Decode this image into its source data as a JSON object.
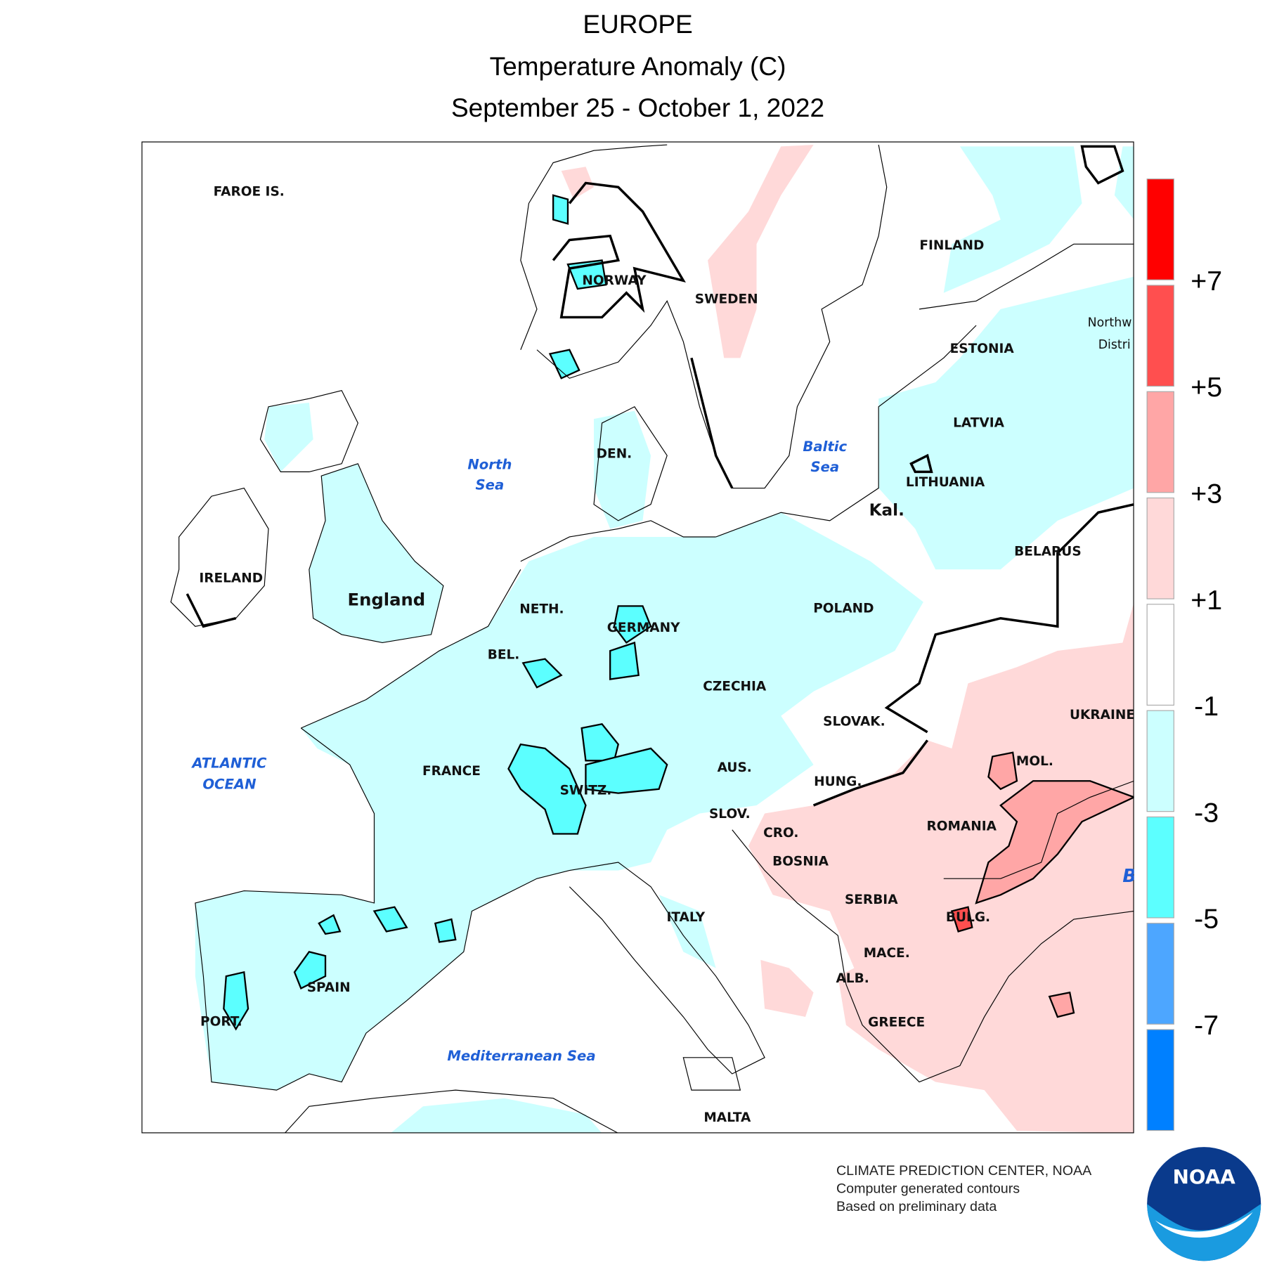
{
  "title": {
    "region": "EUROPE",
    "variable": "Temperature Anomaly (C)",
    "period": "September 25 - October 1, 2022"
  },
  "map_labels": {
    "countries": [
      "FAROE IS.",
      "NORWAY",
      "SWEDEN",
      "FINLAND",
      "ESTONIA",
      "LATVIA",
      "LITHUANIA",
      "Kal.",
      "BELARUS",
      "IRELAND",
      "England",
      "DEN.",
      "NETH.",
      "GERMANY",
      "POLAND",
      "BEL.",
      "CZECHIA",
      "SLOVAK.",
      "UKRAINE",
      "FRANCE",
      "AUS.",
      "SWITZ.",
      "HUNG.",
      "MOL.",
      "SLOV.",
      "CRO.",
      "ROMANIA",
      "BOSNIA",
      "SERBIA",
      "BULG.",
      "ITALY",
      "MACE.",
      "SPAIN",
      "ALB.",
      "PORT.",
      "GREECE",
      "MALTA",
      "Northw",
      "Distri"
    ],
    "seas": [
      "North",
      "Sea",
      "Baltic",
      "Sea",
      "ATLANTIC",
      "OCEAN",
      "Mediterranean Sea",
      "B"
    ]
  },
  "legend": {
    "labels": [
      "+7",
      "+5",
      "+3",
      "+1",
      "-1",
      "-3",
      "-5",
      "-7"
    ],
    "colors": [
      "#ff0000",
      "#ff4f4f",
      "#ffa6a6",
      "#ffd9d9",
      "#ffffff",
      "#ccffff",
      "#5cffff",
      "#4da6ff",
      "#0080ff"
    ]
  },
  "credits": [
    "CLIMATE PREDICTION CENTER, NOAA",
    "Computer generated contours",
    "Based on preliminary data"
  ],
  "logo": "NOAA"
}
